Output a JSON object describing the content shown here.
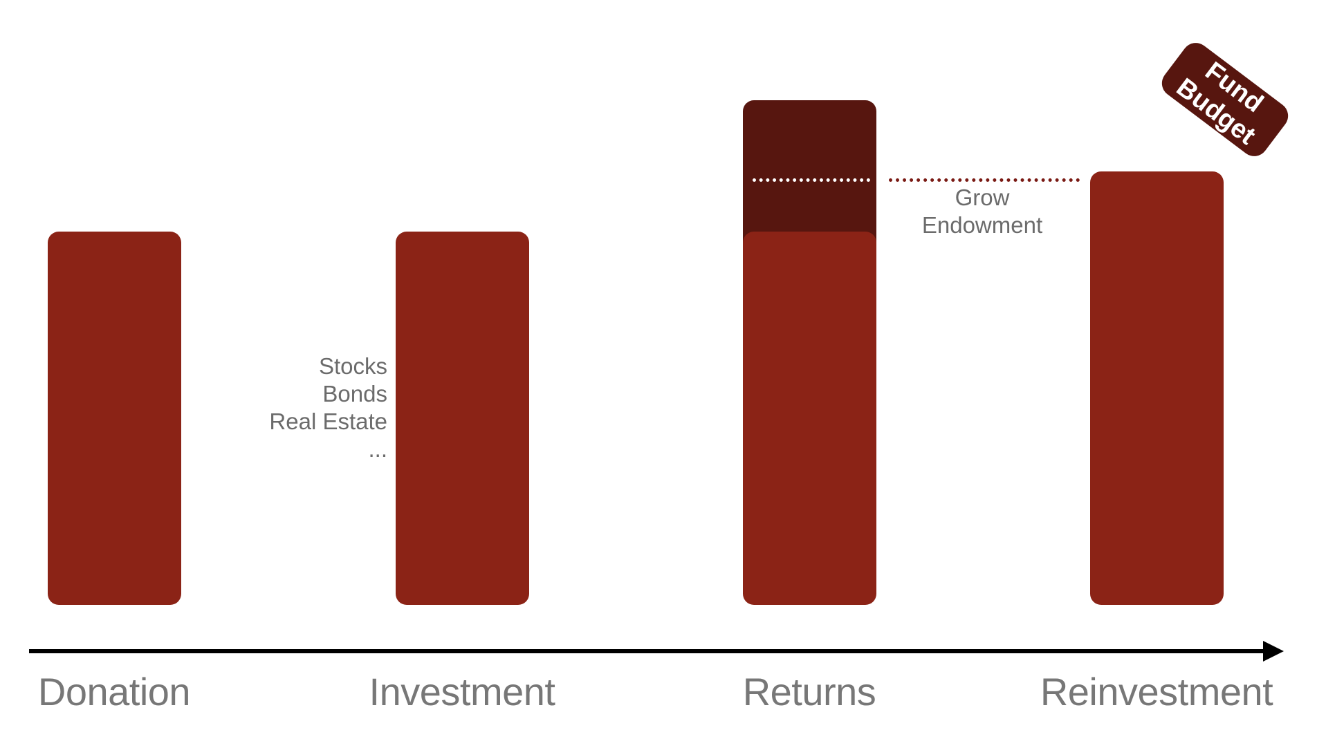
{
  "colors": {
    "bar": "#8b2316",
    "bar_dark": "#57160f",
    "dots": "#7a1a14",
    "axis": "#000000",
    "label": "#777777",
    "note": "#6b6b6b"
  },
  "stages": [
    {
      "label": "Donation"
    },
    {
      "label": "Investment"
    },
    {
      "label": "Returns"
    },
    {
      "label": "Reinvestment"
    }
  ],
  "investment_notes": [
    "Stocks",
    "Bonds",
    "Real Estate",
    "..."
  ],
  "grow_note": [
    "Grow",
    "Endowment"
  ],
  "tag": {
    "line1": "Fund",
    "line2": "Budget"
  },
  "icons": {
    "axis_arrow": "right-arrow-icon"
  }
}
